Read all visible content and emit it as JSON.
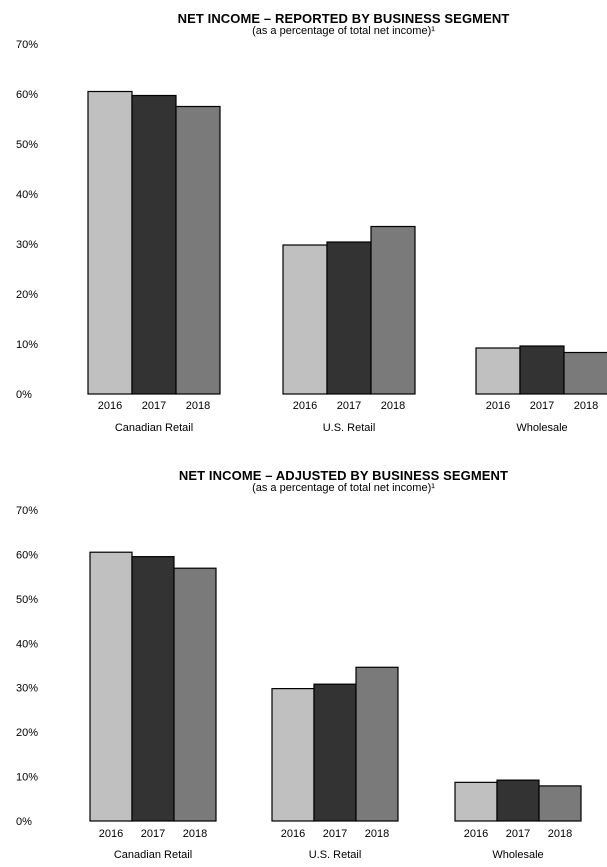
{
  "chart_data": [
    {
      "type": "bar",
      "title": "NET INCOME – REPORTED BY BUSINESS SEGMENT",
      "subtitle": "(as a percentage of total net income)¹",
      "categories": [
        "Canadian Retail",
        "U.S. Retail",
        "Wholesale"
      ],
      "x_sublabels": [
        "2016",
        "2017",
        "2018"
      ],
      "series": [
        {
          "values": [
            60.5,
            29.8,
            9.2
          ],
          "color": "#c0c0c0"
        },
        {
          "values": [
            59.7,
            30.4,
            9.6
          ],
          "color": "#333333"
        },
        {
          "values": [
            57.5,
            33.5,
            8.3
          ],
          "color": "#7a7a7a"
        }
      ],
      "yticks": [
        "0%",
        "10%",
        "20%",
        "30%",
        "40%",
        "50%",
        "60%",
        "70%"
      ],
      "ylim": [
        0,
        70
      ],
      "grid": false,
      "legend": "none"
    },
    {
      "type": "bar",
      "title": "NET INCOME – ADJUSTED BY BUSINESS SEGMENT",
      "subtitle": "(as a percentage of total net income)¹",
      "categories": [
        "Canadian Retail",
        "U.S. Retail",
        "Wholesale"
      ],
      "x_sublabels": [
        "2016",
        "2017",
        "2018"
      ],
      "series": [
        {
          "values": [
            60.5,
            29.8,
            8.7
          ],
          "color": "#c0c0c0"
        },
        {
          "values": [
            59.5,
            30.8,
            9.2
          ],
          "color": "#333333"
        },
        {
          "values": [
            56.9,
            34.6,
            7.9
          ],
          "color": "#7a7a7a"
        }
      ],
      "yticks": [
        "0%",
        "10%",
        "20%",
        "30%",
        "40%",
        "50%",
        "60%",
        "70%"
      ],
      "ylim": [
        0,
        70
      ],
      "grid": false,
      "legend": "none"
    }
  ]
}
